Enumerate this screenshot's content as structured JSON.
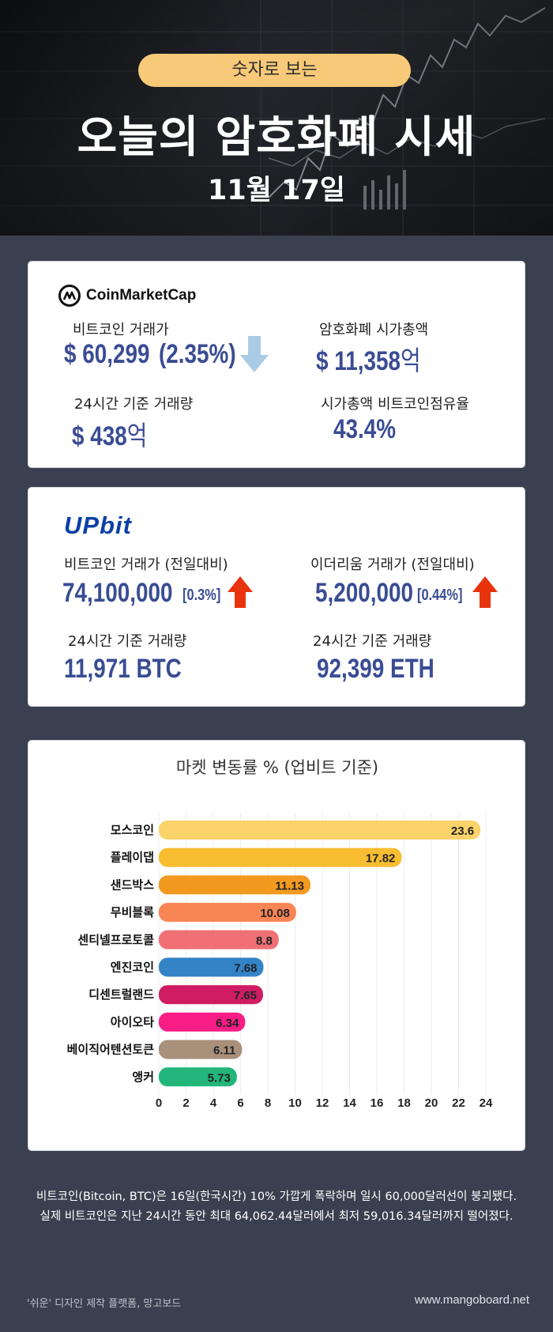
{
  "header": {
    "badge": "숫자로 보는",
    "title": "오늘의 암호화폐 시세",
    "date": "11월 17일"
  },
  "coinmarketcap": {
    "logo_text": "CoinMarketCap",
    "btc_price_label": "비트코인 거래가",
    "btc_price": "$ 60,299",
    "btc_change": "(2.35%)",
    "btc_direction": "down",
    "market_cap_label": "암호화폐 시가총액",
    "market_cap_value": "$ 11,358",
    "market_cap_unit": "억",
    "volume_label": "24시간 기준 거래량",
    "volume_value": "$ 438",
    "volume_unit": "억",
    "dominance_label": "시가총액 비트코인점유율",
    "dominance_value": "43.4%"
  },
  "upbit": {
    "logo_text": "UPbit",
    "btc_label": "비트코인 거래가 (전일대비)",
    "btc_price": "74,100,000",
    "btc_change": "[0.3%]",
    "btc_direction": "up",
    "eth_label": "이더리움 거래가 (전일대비)",
    "eth_price": "5,200,000",
    "eth_change": "[0.44%]",
    "eth_direction": "up",
    "btc_volume_label": "24시간 기준 거래량",
    "btc_volume": "11,971 BTC",
    "eth_volume_label": "24시간 기준 거래량",
    "eth_volume": "92,399 ETH"
  },
  "chart_data": {
    "type": "bar",
    "orientation": "horizontal",
    "title": "마켓 변동률 % (업비트 기준)",
    "categories": [
      "모스코인",
      "플레이댑",
      "샌드박스",
      "무비블록",
      "센티넬프로토콜",
      "엔진코인",
      "디센트럴랜드",
      "아이오타",
      "베이직어텐션토큰",
      "앵커"
    ],
    "values": [
      23.6,
      17.82,
      11.13,
      10.08,
      8.8,
      7.68,
      7.65,
      6.34,
      6.11,
      5.73
    ],
    "value_labels": [
      "23.6",
      "17.82",
      "11.13",
      "10.08",
      "8.8",
      "7.68",
      "7.65",
      "6.34",
      "6.11",
      "5.73"
    ],
    "colors": [
      "#fcd26b",
      "#f9bd31",
      "#f29a20",
      "#f98454",
      "#f07076",
      "#3483c7",
      "#cf1c62",
      "#f81e85",
      "#a9907a",
      "#22b67a"
    ],
    "xticks": [
      "0",
      "2",
      "4",
      "6",
      "8",
      "10",
      "12",
      "14",
      "16",
      "18",
      "20",
      "22",
      "24"
    ],
    "xlim": [
      0,
      24
    ],
    "grid": "vertical"
  },
  "footer": {
    "description": "비트코인(Bitcoin, BTC)은 16일(한국시간) 10% 가깝게 폭락하며 일시 60,000달러선이 붕괴됐다. 실제 비트코인은 지난 24시간 동안 최대 64,062.44달러에서 최저 59,016.34달러까지 떨어졌다.",
    "credit": "'쉬운' 디자인 제작 플랫폼, 망고보드",
    "site": "www.mangoboard.net"
  },
  "colors": {
    "value_blue": "#3a4c93",
    "up_arrow": "#e8330d",
    "down_arrow": "#a9cbe6",
    "badge": "#f8c978",
    "page_background": "#3b4050"
  }
}
